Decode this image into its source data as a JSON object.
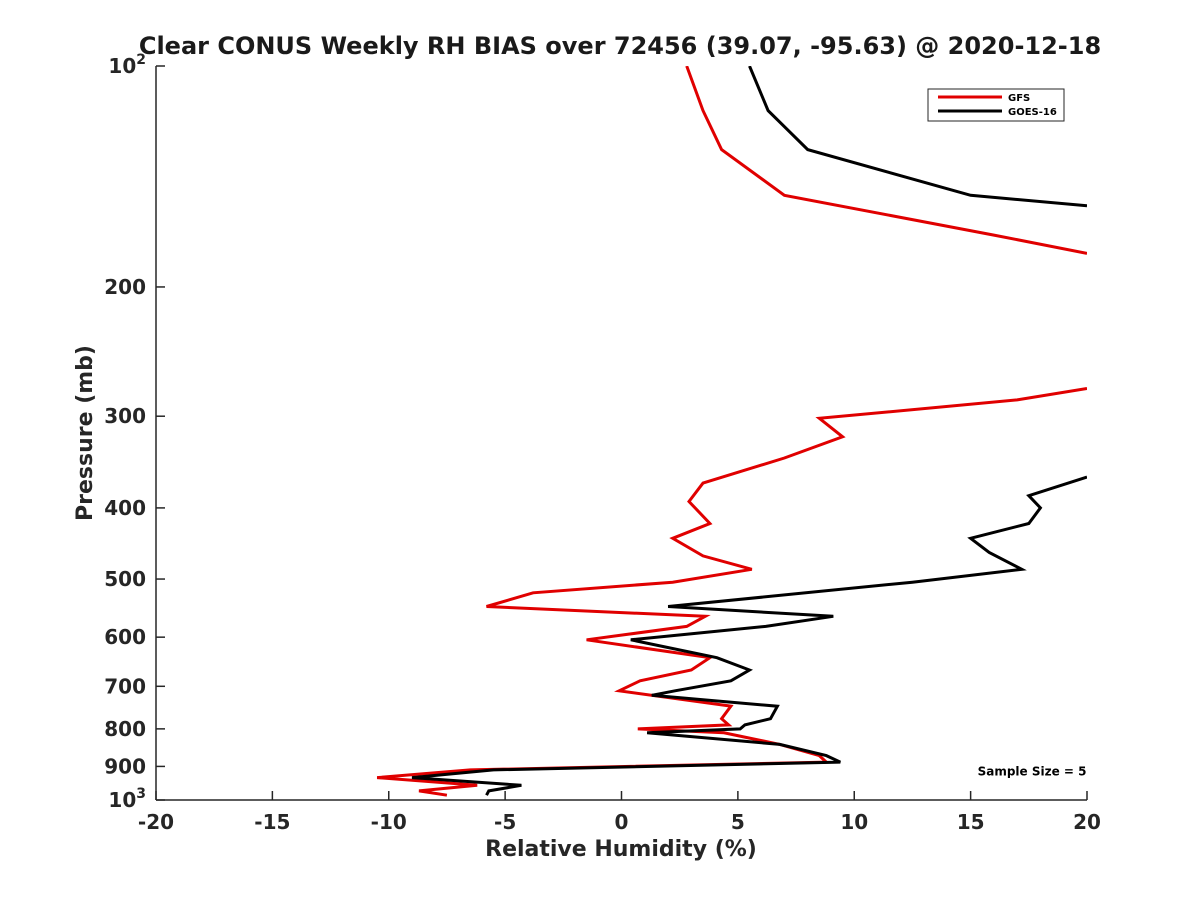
{
  "chart_data": {
    "type": "line",
    "title": "Clear CONUS Weekly RH BIAS over 72456 (39.07, -95.63) @ 2020-12-18",
    "xlabel": "Relative Humidity (%)",
    "ylabel": "Pressure (mb)",
    "xlim": [
      -20,
      20
    ],
    "ylim": [
      100,
      1000
    ],
    "yscale": "log",
    "y_reversed": true,
    "grid": false,
    "legend_position": "top-right",
    "xticks": [
      {
        "value": -20,
        "label": "-20"
      },
      {
        "value": -15,
        "label": "-15"
      },
      {
        "value": -10,
        "label": "-10"
      },
      {
        "value": -5,
        "label": "-5"
      },
      {
        "value": 0,
        "label": "0"
      },
      {
        "value": 5,
        "label": "5"
      },
      {
        "value": 10,
        "label": "10"
      },
      {
        "value": 15,
        "label": "15"
      },
      {
        "value": 20,
        "label": "20"
      }
    ],
    "yticks": [
      {
        "value": 100,
        "base": "10",
        "exp": "2"
      },
      {
        "value": 200,
        "base": "200",
        "exp": ""
      },
      {
        "value": 300,
        "base": "300",
        "exp": ""
      },
      {
        "value": 400,
        "base": "400",
        "exp": ""
      },
      {
        "value": 500,
        "base": "500",
        "exp": ""
      },
      {
        "value": 600,
        "base": "600",
        "exp": ""
      },
      {
        "value": 700,
        "base": "700",
        "exp": ""
      },
      {
        "value": 800,
        "base": "800",
        "exp": ""
      },
      {
        "value": 900,
        "base": "900",
        "exp": ""
      },
      {
        "value": 1000,
        "base": "10",
        "exp": "3"
      }
    ],
    "series": [
      {
        "name": "GFS",
        "color": "#e00000",
        "segments": [
          [
            [
              2.8,
              100
            ],
            [
              3.5,
              115
            ],
            [
              4.3,
              130
            ],
            [
              7,
              150
            ],
            [
              16,
              170
            ],
            [
              20,
              180
            ]
          ],
          [
            [
              20,
              275
            ],
            [
              17,
              285
            ],
            [
              8.5,
              302
            ],
            [
              9.5,
              320
            ],
            [
              7,
              342
            ],
            [
              3.5,
              370
            ],
            [
              2.9,
              392
            ],
            [
              3.8,
              420
            ],
            [
              2.2,
              440
            ],
            [
              3.5,
              465
            ],
            [
              5.6,
              485
            ],
            [
              2.2,
              505
            ],
            [
              -3.8,
              522
            ],
            [
              -5.8,
              545
            ],
            [
              3.6,
              562
            ],
            [
              2.8,
              580
            ],
            [
              -1.5,
              605
            ],
            [
              3.8,
              640
            ],
            [
              3,
              665
            ],
            [
              0.8,
              688
            ],
            [
              -0.1,
              710
            ],
            [
              4.7,
              745
            ],
            [
              4.3,
              775
            ],
            [
              4.6,
              790
            ],
            [
              0.7,
              800
            ],
            [
              4.4,
              810
            ],
            [
              6.8,
              840
            ],
            [
              8.5,
              870
            ],
            [
              8.8,
              888
            ],
            [
              -6.5,
              910
            ],
            [
              -10.5,
              932
            ],
            [
              -6.2,
              955
            ],
            [
              -8.7,
              972
            ],
            [
              -7.5,
              985
            ]
          ]
        ]
      },
      {
        "name": "GOES-16",
        "color": "#000000",
        "segments": [
          [
            [
              5.5,
              100
            ],
            [
              6.3,
              115
            ],
            [
              8,
              130
            ],
            [
              15,
              150
            ],
            [
              20,
              155
            ]
          ],
          [
            [
              20,
              363
            ],
            [
              17.5,
              385
            ],
            [
              18,
              400
            ],
            [
              17.5,
              420
            ],
            [
              15,
              440
            ],
            [
              15.8,
              460
            ],
            [
              17.2,
              485
            ],
            [
              12.5,
              505
            ],
            [
              2,
              545
            ],
            [
              9.1,
              562
            ],
            [
              6.2,
              580
            ],
            [
              0.4,
              605
            ],
            [
              4.1,
              640
            ],
            [
              5.5,
              665
            ],
            [
              4.7,
              688
            ],
            [
              2.3,
              710
            ],
            [
              1.3,
              720
            ],
            [
              6.7,
              745
            ],
            [
              6.4,
              775
            ],
            [
              5.3,
              790
            ],
            [
              5.1,
              800
            ],
            [
              1.1,
              810
            ],
            [
              6.8,
              840
            ],
            [
              8.8,
              870
            ],
            [
              9.4,
              888
            ],
            [
              -5.5,
              910
            ],
            [
              -9,
              932
            ],
            [
              -4.3,
              955
            ],
            [
              -5.7,
              972
            ],
            [
              -5.8,
              985
            ]
          ]
        ]
      }
    ],
    "annotations": [
      {
        "text": "Sample Size = 5",
        "x": 15.3,
        "y": 915
      }
    ]
  }
}
